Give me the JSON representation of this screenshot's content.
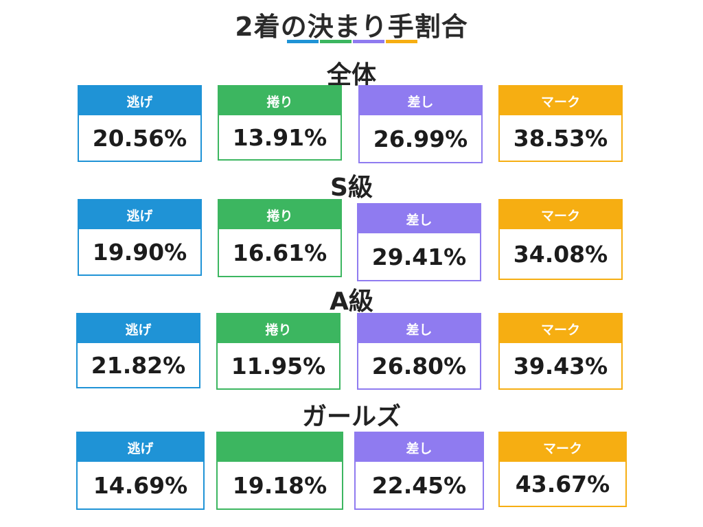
{
  "title": "2着の決まり手割合",
  "colors": {
    "nige": "#1f93d6",
    "makuri": "#3cb660",
    "sashi": "#8f7bf0",
    "mark": "#f6ae12"
  },
  "sections": [
    {
      "title": "全体",
      "cards": [
        {
          "label": "逃げ",
          "value": "20.56%"
        },
        {
          "label": "捲り",
          "value": "13.91%"
        },
        {
          "label": "差し",
          "value": "26.99%"
        },
        {
          "label": "マーク",
          "value": "38.53%"
        }
      ]
    },
    {
      "title": "S級",
      "cards": [
        {
          "label": "逃げ",
          "value": "19.90%"
        },
        {
          "label": "捲り",
          "value": "16.61%"
        },
        {
          "label": "差し",
          "value": "29.41%"
        },
        {
          "label": "マーク",
          "value": "34.08%"
        }
      ]
    },
    {
      "title": "A級",
      "cards": [
        {
          "label": "逃げ",
          "value": "21.82%"
        },
        {
          "label": "捲り",
          "value": "11.95%"
        },
        {
          "label": "差し",
          "value": "26.80%"
        },
        {
          "label": "マーク",
          "value": "39.43%"
        }
      ]
    },
    {
      "title": "ガールズ",
      "cards": [
        {
          "label": "逃げ",
          "value": "14.69%"
        },
        {
          "label": "",
          "value": "19.18%"
        },
        {
          "label": "差し",
          "value": "22.45%"
        },
        {
          "label": "マーク",
          "value": "43.67%"
        }
      ]
    }
  ]
}
